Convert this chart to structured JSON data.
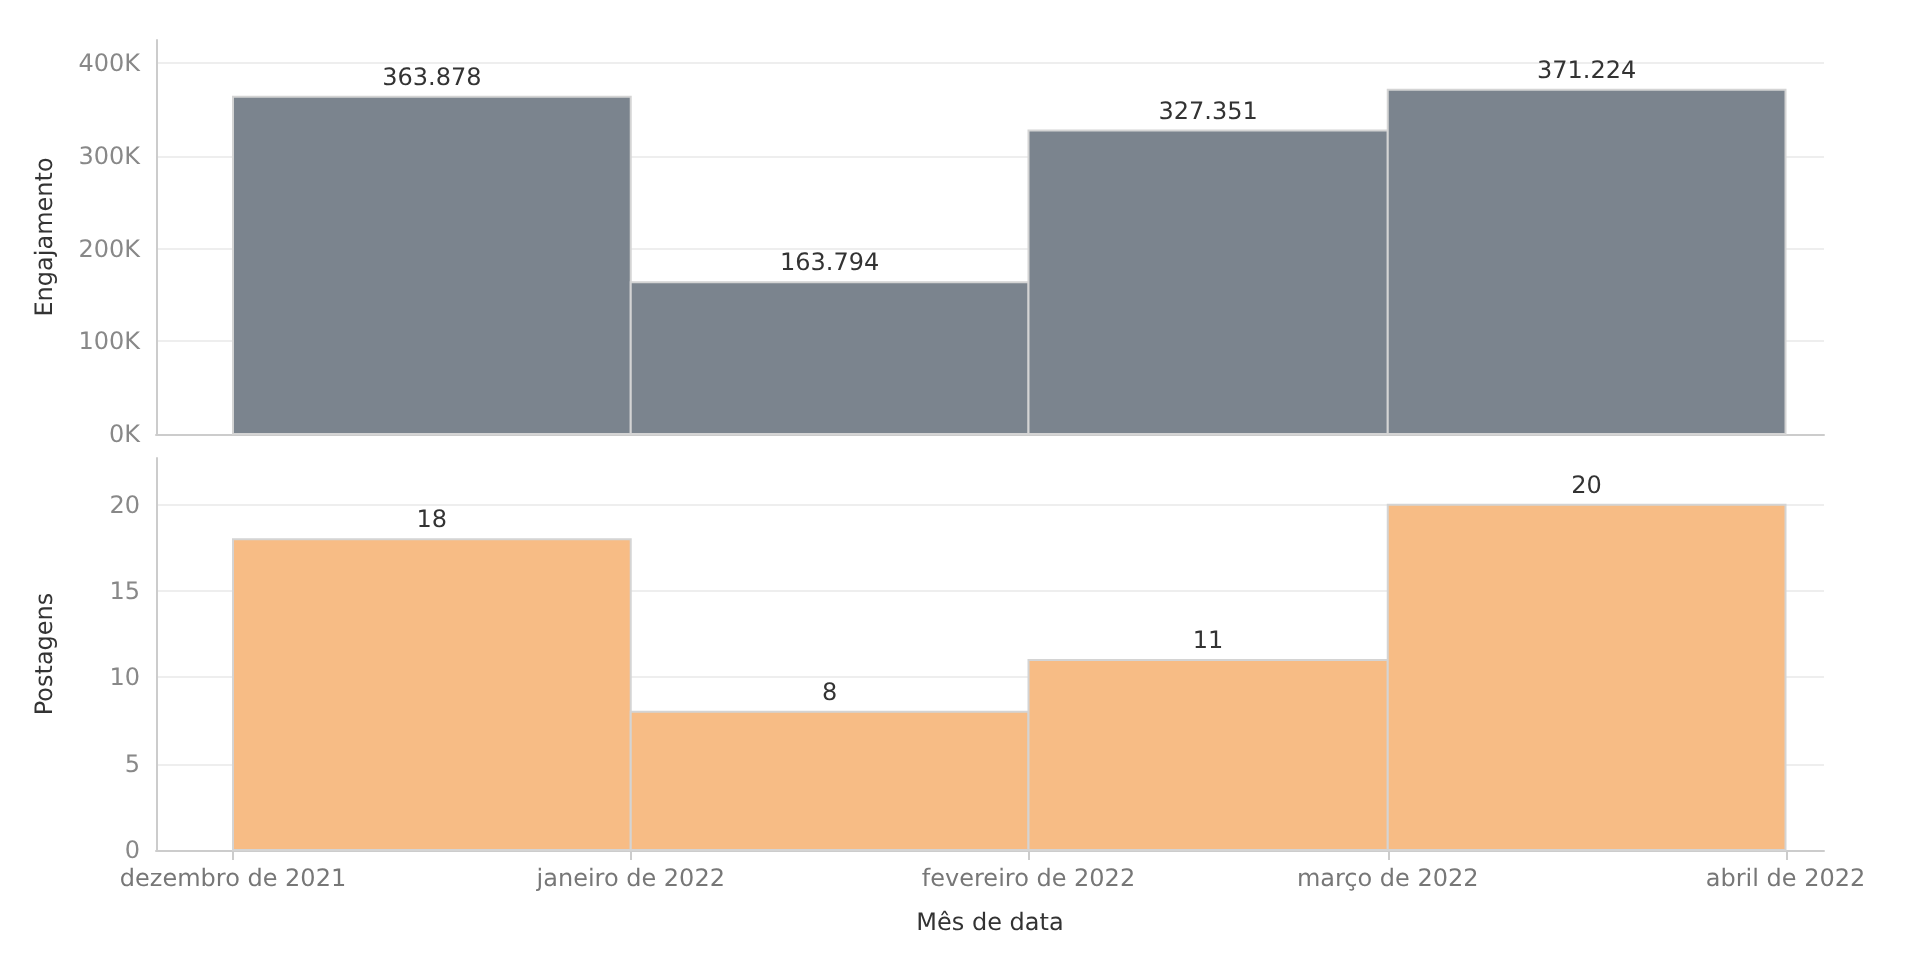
{
  "chart_data": [
    {
      "type": "histogram",
      "ylabel": "Engajamento",
      "bins": [
        "2021-12",
        "2022-01",
        "2022-02",
        "2022-03",
        "2022-04"
      ],
      "series": [
        {
          "color": "#7b848e",
          "values": [
            363878,
            163794,
            327351,
            371224
          ],
          "value_labels": [
            "363.878",
            "163.794",
            "327.351",
            "371.224"
          ]
        }
      ],
      "xlim": [
        "2021-11-25",
        "2022-04-04"
      ],
      "ylim": [
        0,
        425000
      ],
      "yticks": [
        {
          "value": 0,
          "label": "0K"
        },
        {
          "value": 100000,
          "label": "100K"
        },
        {
          "value": 200000,
          "label": "200K"
        },
        {
          "value": 300000,
          "label": "300K"
        },
        {
          "value": 400000,
          "label": "400K"
        }
      ],
      "grid": "y",
      "tick_labels": "y"
    },
    {
      "type": "histogram",
      "ylabel": "Postagens",
      "xlabel": "Mês de data",
      "bins": [
        "2021-12",
        "2022-01",
        "2022-02",
        "2022-03",
        "2022-04"
      ],
      "series": [
        {
          "color": "#f7bc85",
          "values": [
            18,
            8,
            11,
            20
          ]
        }
      ],
      "xlim": [
        "2021-11-25",
        "2022-04-04"
      ],
      "xticks": [
        {
          "value": "2021-12",
          "label": "dezembro de 2021"
        },
        {
          "value": "2022-01",
          "label": "janeiro de 2022"
        },
        {
          "value": "2022-02",
          "label": "fevereiro de 2022"
        },
        {
          "value": "2022-03",
          "label": "março de 2022"
        },
        {
          "value": "2022-04",
          "label": "abril de 2022"
        }
      ],
      "ylim": [
        0,
        22.7
      ],
      "yticks": [
        0,
        5,
        10,
        15,
        20
      ],
      "grid": "y",
      "data_labels": true
    }
  ]
}
